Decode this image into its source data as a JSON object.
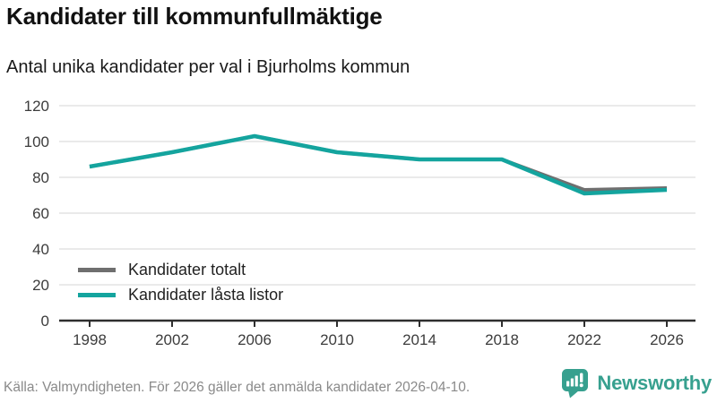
{
  "header": {
    "title": "Kandidater till kommunfullmäktige",
    "subtitle": "Antal unika kandidater per val i Bjurholms kommun"
  },
  "chart_data": {
    "type": "line",
    "title": "Kandidater till kommunfullmäktige",
    "subtitle": "Antal unika kandidater per val i Bjurholms kommun",
    "categories": [
      "1998",
      "2002",
      "2006",
      "2010",
      "2014",
      "2018",
      "2022",
      "2026"
    ],
    "series": [
      {
        "name": "Kandidater totalt",
        "color": "#6f6f6f",
        "values": [
          86,
          94,
          103,
          94,
          90,
          90,
          73,
          74
        ]
      },
      {
        "name": "Kandidater låsta listor",
        "color": "#14a49e",
        "values": [
          86,
          94,
          103,
          94,
          90,
          90,
          71,
          73
        ]
      }
    ],
    "xlabel": "",
    "ylabel": "",
    "ylim": [
      0,
      120
    ],
    "yticks": [
      0,
      20,
      40,
      60,
      80,
      100,
      120
    ],
    "grid": true,
    "legend_position": "inside-bottom-left"
  },
  "footer": {
    "source_note": "Källa: Valmyndigheten. För 2026 gäller det anmälda kandidater 2026-04-10.",
    "brand": "Newsworthy"
  },
  "colors": {
    "line_teal": "#14a49e",
    "line_gray": "#6f6f6f",
    "brand_teal": "#37a08f",
    "gridline": "#e3e3e3",
    "axis": "#2e2e2e"
  }
}
